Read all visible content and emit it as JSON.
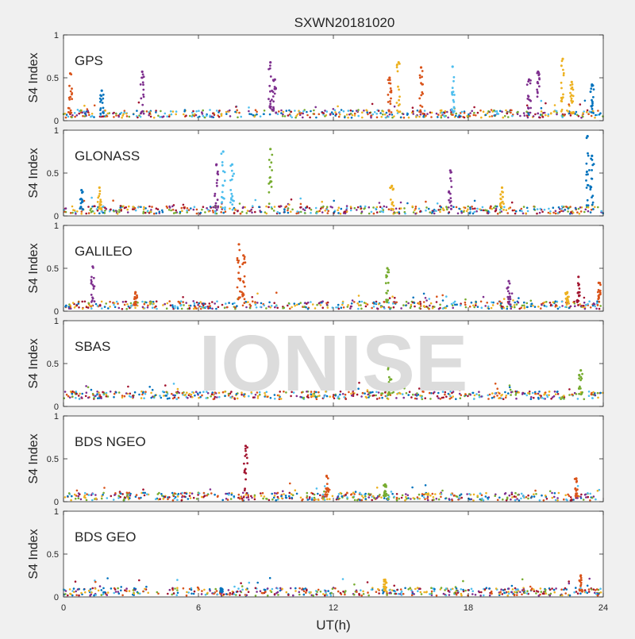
{
  "chart_data": {
    "type": "scatter",
    "title": "SXWN20181020",
    "xlabel": "UT(h)",
    "ylabel": "S4 Index",
    "xlim": [
      0,
      24
    ],
    "ylim": [
      0,
      1
    ],
    "x_ticks": [
      "0",
      "6",
      "12",
      "18",
      "24"
    ],
    "y_ticks": [
      "0",
      "0.5",
      "1"
    ],
    "watermark": "IONISE",
    "colors": [
      "#0072BD",
      "#D95319",
      "#EDB120",
      "#7E2F8E",
      "#77AC30",
      "#4DBEEE",
      "#A2142F"
    ],
    "grid": false,
    "panels": [
      {
        "label": "GPS",
        "baseline": 0.08,
        "spikes": [
          {
            "x": 0.3,
            "peak": 0.55,
            "color": "#D95319"
          },
          {
            "x": 1.7,
            "peak": 0.35,
            "color": "#0072BD"
          },
          {
            "x": 3.5,
            "peak": 0.57,
            "color": "#7E2F8E"
          },
          {
            "x": 9.2,
            "peak": 0.68,
            "color": "#7E2F8E"
          },
          {
            "x": 9.4,
            "peak": 0.48,
            "color": "#7E2F8E"
          },
          {
            "x": 14.5,
            "peak": 0.5,
            "color": "#D95319"
          },
          {
            "x": 14.9,
            "peak": 0.68,
            "color": "#EDB120"
          },
          {
            "x": 15.9,
            "peak": 0.62,
            "color": "#D95319"
          },
          {
            "x": 17.3,
            "peak": 0.63,
            "color": "#4DBEEE"
          },
          {
            "x": 20.7,
            "peak": 0.48,
            "color": "#7E2F8E"
          },
          {
            "x": 21.1,
            "peak": 0.57,
            "color": "#7E2F8E"
          },
          {
            "x": 22.2,
            "peak": 0.72,
            "color": "#EDB120"
          },
          {
            "x": 22.6,
            "peak": 0.45,
            "color": "#EDB120"
          },
          {
            "x": 23.5,
            "peak": 0.42,
            "color": "#0072BD"
          }
        ]
      },
      {
        "label": "GLONASS",
        "baseline": 0.07,
        "spikes": [
          {
            "x": 0.8,
            "peak": 0.3,
            "color": "#0072BD"
          },
          {
            "x": 1.6,
            "peak": 0.33,
            "color": "#EDB120"
          },
          {
            "x": 6.8,
            "peak": 0.6,
            "color": "#7E2F8E"
          },
          {
            "x": 7.1,
            "peak": 0.75,
            "color": "#4DBEEE"
          },
          {
            "x": 7.5,
            "peak": 0.6,
            "color": "#4DBEEE"
          },
          {
            "x": 9.2,
            "peak": 0.78,
            "color": "#77AC30"
          },
          {
            "x": 14.6,
            "peak": 0.35,
            "color": "#EDB120"
          },
          {
            "x": 17.2,
            "peak": 0.53,
            "color": "#7E2F8E"
          },
          {
            "x": 19.5,
            "peak": 0.33,
            "color": "#EDB120"
          },
          {
            "x": 23.3,
            "peak": 0.93,
            "color": "#0072BD"
          },
          {
            "x": 23.5,
            "peak": 0.7,
            "color": "#0072BD"
          }
        ]
      },
      {
        "label": "GALILEO",
        "baseline": 0.07,
        "spikes": [
          {
            "x": 1.3,
            "peak": 0.52,
            "color": "#7E2F8E"
          },
          {
            "x": 3.2,
            "peak": 0.22,
            "color": "#D95319"
          },
          {
            "x": 7.8,
            "peak": 0.78,
            "color": "#D95319"
          },
          {
            "x": 8.0,
            "peak": 0.65,
            "color": "#D95319"
          },
          {
            "x": 14.4,
            "peak": 0.5,
            "color": "#77AC30"
          },
          {
            "x": 19.8,
            "peak": 0.35,
            "color": "#7E2F8E"
          },
          {
            "x": 22.4,
            "peak": 0.22,
            "color": "#EDB120"
          },
          {
            "x": 22.9,
            "peak": 0.4,
            "color": "#A2142F"
          },
          {
            "x": 23.8,
            "peak": 0.33,
            "color": "#D95319"
          }
        ]
      },
      {
        "label": "SBAS",
        "baseline": 0.13,
        "spikes": [
          {
            "x": 14.5,
            "peak": 0.5,
            "color": "#77AC30"
          },
          {
            "x": 23.0,
            "peak": 0.42,
            "color": "#77AC30"
          }
        ]
      },
      {
        "label": "BDS NGEO",
        "baseline": 0.06,
        "spikes": [
          {
            "x": 8.1,
            "peak": 0.65,
            "color": "#A2142F"
          },
          {
            "x": 11.7,
            "peak": 0.3,
            "color": "#D95319"
          },
          {
            "x": 14.3,
            "peak": 0.2,
            "color": "#77AC30"
          },
          {
            "x": 22.8,
            "peak": 0.27,
            "color": "#D95319"
          }
        ]
      },
      {
        "label": "BDS GEO",
        "baseline": 0.06,
        "spikes": [
          {
            "x": 7.0,
            "peak": 0.1,
            "color": "#0072BD"
          },
          {
            "x": 14.3,
            "peak": 0.2,
            "color": "#EDB120"
          },
          {
            "x": 23.0,
            "peak": 0.25,
            "color": "#D95319"
          }
        ]
      }
    ]
  }
}
